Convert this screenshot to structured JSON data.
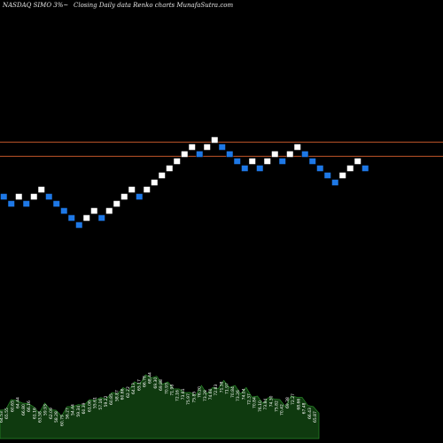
{
  "header": {
    "exchange_symbol": "NASDAQ SIMO 3%~",
    "title": "Closing Daily data  Renko  charts MunafaSutra.com"
  },
  "colors": {
    "background": "#000000",
    "up_brick": "#ffffff",
    "down_brick": "#1e78e6",
    "brick_border": "#000000",
    "level_line": "#c0562a",
    "volume_fill": "#0f3a0f",
    "volume_line": "#2a8a2a"
  },
  "chart_data": {
    "type": "renko",
    "brick_size_percent": 3,
    "bricks": [
      {
        "dir": "down",
        "level": 8
      },
      {
        "dir": "down",
        "level": 7
      },
      {
        "dir": "up",
        "level": 8
      },
      {
        "dir": "down",
        "level": 7
      },
      {
        "dir": "up",
        "level": 8
      },
      {
        "dir": "up",
        "level": 9
      },
      {
        "dir": "down",
        "level": 8
      },
      {
        "dir": "down",
        "level": 7
      },
      {
        "dir": "down",
        "level": 6
      },
      {
        "dir": "down",
        "level": 5
      },
      {
        "dir": "down",
        "level": 4
      },
      {
        "dir": "up",
        "level": 5
      },
      {
        "dir": "up",
        "level": 6
      },
      {
        "dir": "down",
        "level": 5
      },
      {
        "dir": "up",
        "level": 6
      },
      {
        "dir": "up",
        "level": 7
      },
      {
        "dir": "up",
        "level": 8
      },
      {
        "dir": "up",
        "level": 9
      },
      {
        "dir": "down",
        "level": 8
      },
      {
        "dir": "up",
        "level": 9
      },
      {
        "dir": "up",
        "level": 10
      },
      {
        "dir": "up",
        "level": 11
      },
      {
        "dir": "up",
        "level": 12
      },
      {
        "dir": "up",
        "level": 13
      },
      {
        "dir": "up",
        "level": 14
      },
      {
        "dir": "up",
        "level": 15
      },
      {
        "dir": "down",
        "level": 14
      },
      {
        "dir": "up",
        "level": 15
      },
      {
        "dir": "up",
        "level": 16
      },
      {
        "dir": "down",
        "level": 15
      },
      {
        "dir": "down",
        "level": 14
      },
      {
        "dir": "down",
        "level": 13
      },
      {
        "dir": "down",
        "level": 12
      },
      {
        "dir": "up",
        "level": 13
      },
      {
        "dir": "down",
        "level": 12
      },
      {
        "dir": "up",
        "level": 13
      },
      {
        "dir": "up",
        "level": 14
      },
      {
        "dir": "down",
        "level": 13
      },
      {
        "dir": "up",
        "level": 14
      },
      {
        "dir": "up",
        "level": 15
      },
      {
        "dir": "down",
        "level": 14
      },
      {
        "dir": "down",
        "level": 13
      },
      {
        "dir": "down",
        "level": 12
      },
      {
        "dir": "down",
        "level": 11
      },
      {
        "dir": "down",
        "level": 10
      },
      {
        "dir": "up",
        "level": 11
      },
      {
        "dir": "up",
        "level": 12
      },
      {
        "dir": "up",
        "level": 13
      },
      {
        "dir": "down",
        "level": 12
      }
    ],
    "horizontal_levels": [
      15.2,
      13.2
    ],
    "volume": [
      0.4,
      0.45,
      0.55,
      0.6,
      0.5,
      0.55,
      0.45,
      0.4,
      0.5,
      0.45,
      0.4,
      0.35,
      0.45,
      0.5,
      0.48,
      0.52,
      0.55,
      0.6,
      0.58,
      0.62,
      0.65,
      0.7,
      0.72,
      0.75,
      0.8,
      0.85,
      0.9,
      0.95,
      0.88,
      0.85,
      0.8,
      0.78,
      0.7,
      0.72,
      0.65,
      0.68,
      0.75,
      0.7,
      0.72,
      0.78,
      0.82,
      0.8,
      0.75,
      0.7,
      0.72,
      0.65,
      0.6,
      0.55,
      0.58,
      0.62,
      0.55,
      0.5,
      0.6,
      0.65,
      0.58,
      0.52,
      0.45,
      0.4
    ],
    "volume_labels": [
      "64.53",
      "65.55",
      "60.65",
      "64.44",
      "66.80",
      "66.16",
      "61.16",
      "63.58",
      "59.93",
      "62.09",
      "58.28",
      "60.79",
      "56.27",
      "54.44",
      "59.34",
      "60.39",
      "61.06",
      "55.61",
      "57.16",
      "59.22",
      "60.85",
      "58.87",
      "60.66",
      "62.22",
      "64.13",
      "65.17",
      "66.78",
      "68.44",
      "69.30",
      "69.88",
      "70.93",
      "71.98",
      "72.16",
      "73.61",
      "75.97",
      "75.85",
      "76.20",
      "73.28",
      "74.60",
      "72.83",
      "71.38",
      "71.97",
      "70.84",
      "73.26",
      "74.04",
      "72.37",
      "70.84",
      "76.10",
      "73.84",
      "74.30",
      "75.82",
      "70.42",
      "69.38",
      "72.27",
      "68.66",
      "67.48",
      "66.43",
      "65.87"
    ]
  }
}
